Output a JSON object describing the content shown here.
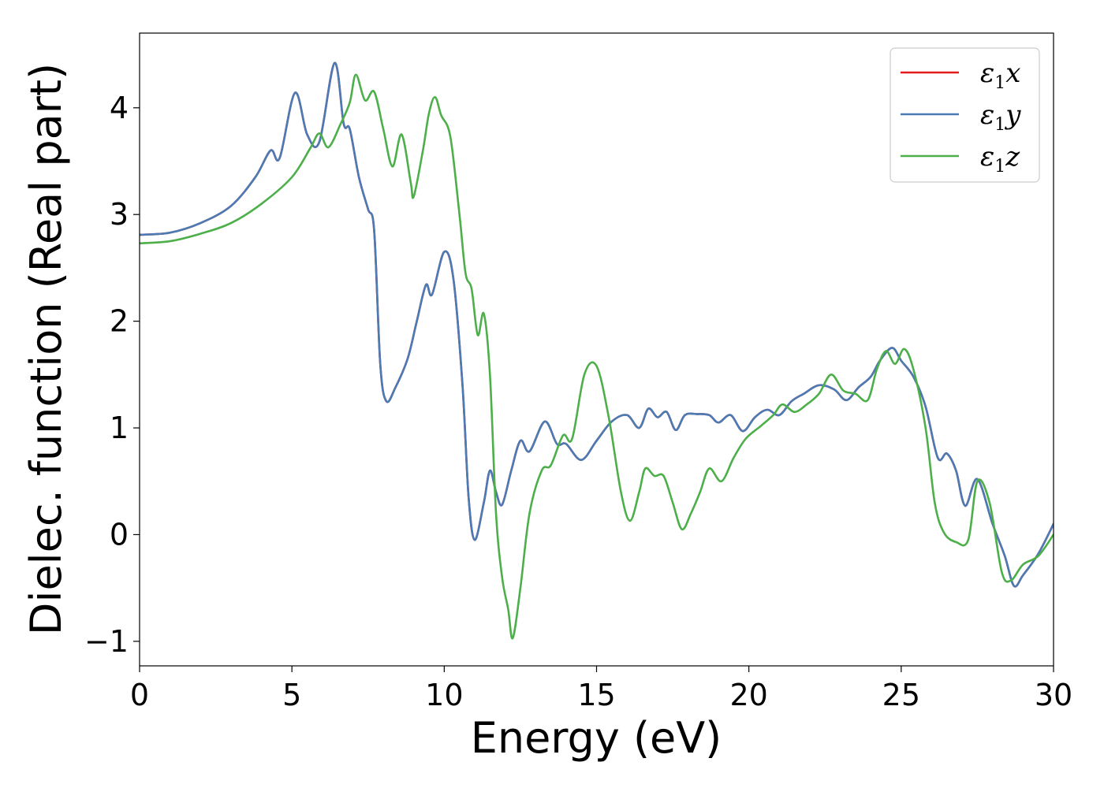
{
  "chart_data": {
    "type": "line",
    "title": "",
    "xlabel": "Energy (eV)",
    "ylabel": "Dielec. function (Real part)",
    "xlim": [
      0,
      30
    ],
    "ylim": [
      -1.23,
      4.7
    ],
    "xticks": [
      0,
      5,
      10,
      15,
      20,
      25,
      30
    ],
    "yticks": [
      -1,
      0,
      1,
      2,
      3,
      4
    ],
    "xtick_labels": [
      "0",
      "5",
      "10",
      "15",
      "20",
      "25",
      "30"
    ],
    "ytick_labels": [
      "−1",
      "0",
      "1",
      "2",
      "3",
      "4"
    ],
    "grid": false,
    "legend_position": "top-right",
    "series": [
      {
        "name": "ε",
        "sub": "1",
        "suffix": "x",
        "color": "#e41a1c",
        "points": [
          [
            0,
            2.81
          ],
          [
            1,
            2.83
          ],
          [
            2,
            2.92
          ],
          [
            3,
            3.08
          ],
          [
            3.8,
            3.35
          ],
          [
            4.3,
            3.6
          ],
          [
            4.6,
            3.53
          ],
          [
            5.1,
            4.14
          ],
          [
            5.5,
            3.75
          ],
          [
            5.9,
            3.68
          ],
          [
            6.4,
            4.42
          ],
          [
            6.7,
            3.85
          ],
          [
            6.9,
            3.8
          ],
          [
            7.2,
            3.35
          ],
          [
            7.5,
            3.05
          ],
          [
            7.7,
            2.85
          ],
          [
            7.9,
            1.6
          ],
          [
            8.1,
            1.25
          ],
          [
            8.4,
            1.38
          ],
          [
            8.8,
            1.65
          ],
          [
            9.1,
            2.0
          ],
          [
            9.4,
            2.34
          ],
          [
            9.6,
            2.25
          ],
          [
            10.0,
            2.65
          ],
          [
            10.3,
            2.4
          ],
          [
            10.6,
            1.4
          ],
          [
            10.8,
            0.35
          ],
          [
            11.0,
            -0.05
          ],
          [
            11.3,
            0.3
          ],
          [
            11.5,
            0.6
          ],
          [
            11.7,
            0.4
          ],
          [
            11.9,
            0.28
          ],
          [
            12.2,
            0.6
          ],
          [
            12.5,
            0.88
          ],
          [
            12.8,
            0.78
          ],
          [
            13.3,
            1.06
          ],
          [
            13.7,
            0.85
          ],
          [
            14.0,
            0.85
          ],
          [
            14.5,
            0.7
          ],
          [
            15.0,
            0.88
          ],
          [
            15.5,
            1.06
          ],
          [
            16.0,
            1.12
          ],
          [
            16.4,
            1.0
          ],
          [
            16.7,
            1.18
          ],
          [
            17.0,
            1.1
          ],
          [
            17.3,
            1.15
          ],
          [
            17.6,
            0.98
          ],
          [
            17.9,
            1.12
          ],
          [
            18.3,
            1.13
          ],
          [
            18.7,
            1.12
          ],
          [
            19.0,
            1.05
          ],
          [
            19.4,
            1.12
          ],
          [
            19.8,
            0.97
          ],
          [
            20.2,
            1.1
          ],
          [
            20.6,
            1.17
          ],
          [
            21.0,
            1.12
          ],
          [
            21.4,
            1.25
          ],
          [
            21.8,
            1.32
          ],
          [
            22.3,
            1.4
          ],
          [
            22.8,
            1.36
          ],
          [
            23.2,
            1.26
          ],
          [
            23.6,
            1.38
          ],
          [
            24.0,
            1.48
          ],
          [
            24.3,
            1.63
          ],
          [
            24.7,
            1.75
          ],
          [
            25.0,
            1.63
          ],
          [
            25.4,
            1.48
          ],
          [
            25.8,
            1.2
          ],
          [
            26.2,
            0.72
          ],
          [
            26.5,
            0.76
          ],
          [
            26.8,
            0.6
          ],
          [
            27.1,
            0.27
          ],
          [
            27.5,
            0.52
          ],
          [
            28.0,
            0.1
          ],
          [
            28.4,
            -0.2
          ],
          [
            28.7,
            -0.48
          ],
          [
            29.0,
            -0.38
          ],
          [
            29.5,
            -0.18
          ],
          [
            30.0,
            0.1
          ]
        ]
      },
      {
        "name": "ε",
        "sub": "1",
        "suffix": "y",
        "color": "#4a7bb5",
        "points": [
          [
            0,
            2.81
          ],
          [
            1,
            2.83
          ],
          [
            2,
            2.92
          ],
          [
            3,
            3.08
          ],
          [
            3.8,
            3.35
          ],
          [
            4.3,
            3.6
          ],
          [
            4.6,
            3.53
          ],
          [
            5.1,
            4.14
          ],
          [
            5.5,
            3.75
          ],
          [
            5.9,
            3.68
          ],
          [
            6.4,
            4.42
          ],
          [
            6.7,
            3.85
          ],
          [
            6.9,
            3.8
          ],
          [
            7.2,
            3.35
          ],
          [
            7.5,
            3.05
          ],
          [
            7.7,
            2.85
          ],
          [
            7.9,
            1.6
          ],
          [
            8.1,
            1.25
          ],
          [
            8.4,
            1.38
          ],
          [
            8.8,
            1.65
          ],
          [
            9.1,
            2.0
          ],
          [
            9.4,
            2.34
          ],
          [
            9.6,
            2.25
          ],
          [
            10.0,
            2.65
          ],
          [
            10.3,
            2.4
          ],
          [
            10.6,
            1.4
          ],
          [
            10.8,
            0.35
          ],
          [
            11.0,
            -0.05
          ],
          [
            11.3,
            0.3
          ],
          [
            11.5,
            0.6
          ],
          [
            11.7,
            0.4
          ],
          [
            11.9,
            0.28
          ],
          [
            12.2,
            0.6
          ],
          [
            12.5,
            0.88
          ],
          [
            12.8,
            0.78
          ],
          [
            13.3,
            1.06
          ],
          [
            13.7,
            0.85
          ],
          [
            14.0,
            0.85
          ],
          [
            14.5,
            0.7
          ],
          [
            15.0,
            0.88
          ],
          [
            15.5,
            1.06
          ],
          [
            16.0,
            1.12
          ],
          [
            16.4,
            1.0
          ],
          [
            16.7,
            1.18
          ],
          [
            17.0,
            1.1
          ],
          [
            17.3,
            1.15
          ],
          [
            17.6,
            0.98
          ],
          [
            17.9,
            1.12
          ],
          [
            18.3,
            1.13
          ],
          [
            18.7,
            1.12
          ],
          [
            19.0,
            1.05
          ],
          [
            19.4,
            1.12
          ],
          [
            19.8,
            0.97
          ],
          [
            20.2,
            1.1
          ],
          [
            20.6,
            1.17
          ],
          [
            21.0,
            1.12
          ],
          [
            21.4,
            1.25
          ],
          [
            21.8,
            1.32
          ],
          [
            22.3,
            1.4
          ],
          [
            22.8,
            1.36
          ],
          [
            23.2,
            1.26
          ],
          [
            23.6,
            1.38
          ],
          [
            24.0,
            1.48
          ],
          [
            24.3,
            1.63
          ],
          [
            24.7,
            1.75
          ],
          [
            25.0,
            1.63
          ],
          [
            25.4,
            1.48
          ],
          [
            25.8,
            1.2
          ],
          [
            26.2,
            0.72
          ],
          [
            26.5,
            0.76
          ],
          [
            26.8,
            0.6
          ],
          [
            27.1,
            0.27
          ],
          [
            27.5,
            0.52
          ],
          [
            28.0,
            0.1
          ],
          [
            28.4,
            -0.2
          ],
          [
            28.7,
            -0.48
          ],
          [
            29.0,
            -0.38
          ],
          [
            29.5,
            -0.18
          ],
          [
            30.0,
            0.1
          ]
        ]
      },
      {
        "name": "ε",
        "sub": "1",
        "suffix": "z",
        "color": "#4daf4a",
        "points": [
          [
            0,
            2.73
          ],
          [
            1,
            2.75
          ],
          [
            2,
            2.82
          ],
          [
            3,
            2.92
          ],
          [
            4,
            3.1
          ],
          [
            5,
            3.35
          ],
          [
            5.6,
            3.62
          ],
          [
            5.9,
            3.76
          ],
          [
            6.2,
            3.63
          ],
          [
            6.6,
            3.85
          ],
          [
            6.9,
            4.05
          ],
          [
            7.1,
            4.31
          ],
          [
            7.4,
            4.07
          ],
          [
            7.7,
            4.15
          ],
          [
            8.0,
            3.8
          ],
          [
            8.3,
            3.45
          ],
          [
            8.6,
            3.75
          ],
          [
            8.9,
            3.3
          ],
          [
            9.0,
            3.17
          ],
          [
            9.3,
            3.6
          ],
          [
            9.5,
            3.95
          ],
          [
            9.7,
            4.1
          ],
          [
            9.9,
            3.93
          ],
          [
            10.2,
            3.73
          ],
          [
            10.5,
            3.0
          ],
          [
            10.7,
            2.45
          ],
          [
            10.9,
            2.3
          ],
          [
            11.1,
            1.87
          ],
          [
            11.3,
            2.07
          ],
          [
            11.5,
            1.5
          ],
          [
            11.7,
            0.2
          ],
          [
            11.9,
            -0.4
          ],
          [
            12.1,
            -0.7
          ],
          [
            12.25,
            -0.97
          ],
          [
            12.5,
            -0.5
          ],
          [
            12.8,
            0.2
          ],
          [
            13.2,
            0.6
          ],
          [
            13.5,
            0.65
          ],
          [
            13.9,
            0.93
          ],
          [
            14.2,
            0.9
          ],
          [
            14.6,
            1.5
          ],
          [
            15.0,
            1.58
          ],
          [
            15.4,
            1.1
          ],
          [
            15.8,
            0.4
          ],
          [
            16.1,
            0.13
          ],
          [
            16.4,
            0.4
          ],
          [
            16.6,
            0.62
          ],
          [
            16.9,
            0.55
          ],
          [
            17.2,
            0.55
          ],
          [
            17.5,
            0.3
          ],
          [
            17.8,
            0.05
          ],
          [
            18.1,
            0.2
          ],
          [
            18.4,
            0.4
          ],
          [
            18.7,
            0.62
          ],
          [
            19.1,
            0.5
          ],
          [
            19.5,
            0.72
          ],
          [
            19.9,
            0.9
          ],
          [
            20.4,
            1.02
          ],
          [
            20.8,
            1.12
          ],
          [
            21.1,
            1.22
          ],
          [
            21.5,
            1.15
          ],
          [
            21.9,
            1.22
          ],
          [
            22.3,
            1.32
          ],
          [
            22.7,
            1.5
          ],
          [
            23.1,
            1.35
          ],
          [
            23.5,
            1.32
          ],
          [
            23.9,
            1.26
          ],
          [
            24.2,
            1.55
          ],
          [
            24.5,
            1.72
          ],
          [
            24.8,
            1.6
          ],
          [
            25.1,
            1.74
          ],
          [
            25.4,
            1.55
          ],
          [
            25.8,
            1.0
          ],
          [
            26.1,
            0.3
          ],
          [
            26.4,
            0.02
          ],
          [
            26.8,
            -0.07
          ],
          [
            27.2,
            -0.05
          ],
          [
            27.5,
            0.5
          ],
          [
            27.9,
            0.3
          ],
          [
            28.3,
            -0.35
          ],
          [
            28.6,
            -0.43
          ],
          [
            29.0,
            -0.28
          ],
          [
            29.5,
            -0.2
          ],
          [
            30.0,
            0.0
          ]
        ]
      }
    ]
  }
}
